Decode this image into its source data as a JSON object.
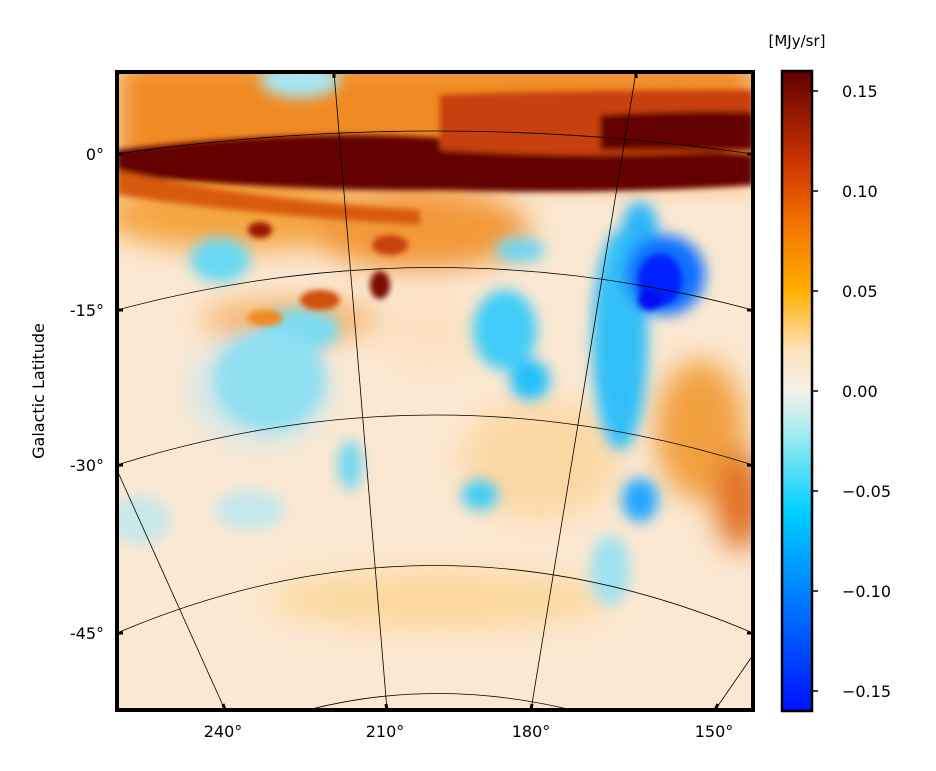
{
  "chart_data": {
    "type": "heatmap",
    "title": "",
    "xlabel": "",
    "ylabel": "Galactic Latitude",
    "x_ticks": [
      "240°",
      "210°",
      "180°",
      "150°"
    ],
    "y_ticks": [
      "0°",
      "-15°",
      "-30°",
      "-45°"
    ],
    "meridians_deg": [
      240,
      210,
      180,
      150
    ],
    "parallels_deg": [
      0,
      -15,
      -30,
      -45
    ],
    "colorbar": {
      "unit": "[MJy/sr]",
      "vmin": -0.16,
      "vmax": 0.16,
      "ticks": [
        0.15,
        0.1,
        0.05,
        0.0,
        -0.05,
        -0.1,
        -0.15
      ],
      "tick_labels": [
        "0.15",
        "0.10",
        "0.05",
        "0.00",
        "−0.05",
        "−0.10",
        "−0.15"
      ],
      "stops": [
        {
          "v": -0.16,
          "color": "#0010ff"
        },
        {
          "v": -0.11,
          "color": "#0070ff"
        },
        {
          "v": -0.06,
          "color": "#00d0ff"
        },
        {
          "v": -0.02,
          "color": "#a8ecf0"
        },
        {
          "v": 0.0,
          "color": "#f5f1ea"
        },
        {
          "v": 0.02,
          "color": "#fde2bc"
        },
        {
          "v": 0.05,
          "color": "#ffb000"
        },
        {
          "v": 0.085,
          "color": "#f27000"
        },
        {
          "v": 0.115,
          "color": "#cc3300"
        },
        {
          "v": 0.16,
          "color": "#600000"
        }
      ]
    },
    "emission_features": [
      {
        "region": "Galactic plane band",
        "l_range": [
          150,
          250
        ],
        "b_range": [
          -2,
          2
        ],
        "value": 0.16
      },
      {
        "region": "below-plane emission",
        "l_range": [
          185,
          250
        ],
        "b_range": [
          -13,
          -2
        ],
        "value": 0.07
      },
      {
        "region": "deep decrement",
        "l": 157,
        "b": -11,
        "value": -0.15
      },
      {
        "region": "decrement ridge",
        "l": 164,
        "b": -22,
        "value": -0.08
      },
      {
        "region": "decrement patch",
        "l": 190,
        "b": -16,
        "value": -0.06
      },
      {
        "region": "decrement patch",
        "l": 232,
        "b": -19,
        "value": -0.04
      },
      {
        "region": "emission clump",
        "l": 150,
        "b": -27,
        "value": 0.09
      }
    ]
  }
}
